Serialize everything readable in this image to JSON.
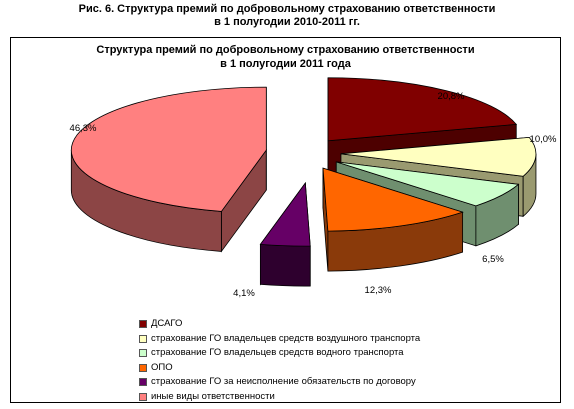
{
  "figure": {
    "caption_line1": "Рис. 6. Структура премий по добровольному страхованию ответственности",
    "caption_line2": "в 1 полугодии 2010-2011 гг."
  },
  "chart_data": {
    "type": "pie",
    "title_line1": "Структура премий по добровольному страхованию ответственности",
    "title_line2": "в 1 полугодии 2011 года",
    "legend_position": "bottom",
    "exploded": true,
    "three_d": true,
    "slices": [
      {
        "name": "ДСАГО",
        "value": 20.8,
        "label": "20,8%",
        "color": "#800000",
        "side": "#4d0000"
      },
      {
        "name": "страхование ГО владельцев средств воздушного транспорта",
        "value": 10.0,
        "label": "10,0%",
        "color": "#ffffc0",
        "side": "#9a9a70"
      },
      {
        "name": "страхование ГО владельцев средств водного транспорта",
        "value": 6.5,
        "label": "6,5%",
        "color": "#ccffcc",
        "side": "#6f8f6f"
      },
      {
        "name": "ОПО",
        "value": 12.3,
        "label": "12,3%",
        "color": "#ff6600",
        "side": "#8a3a0a"
      },
      {
        "name": "страхование ГО за неисполнение обязательств по договору",
        "value": 4.1,
        "label": "4,1%",
        "color": "#660066",
        "side": "#2e002e"
      },
      {
        "name": "иные виды ответственности",
        "value": 46.3,
        "label": "46,3%",
        "color": "#ff8080",
        "side": "#8c4545"
      }
    ]
  }
}
